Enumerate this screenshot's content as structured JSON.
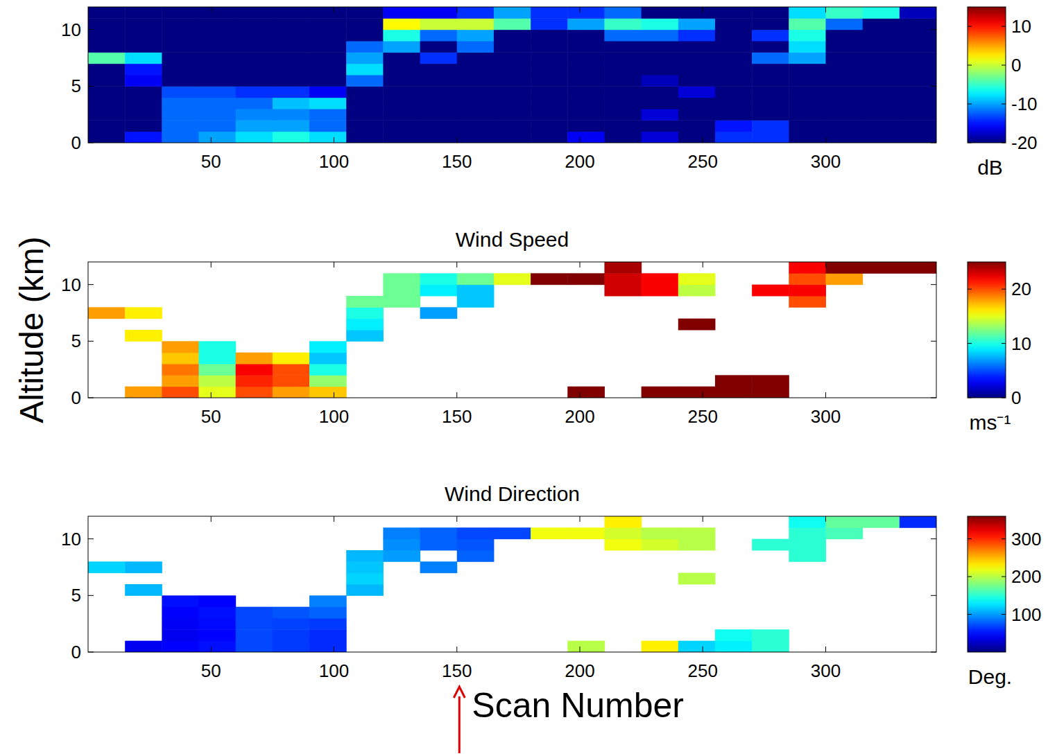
{
  "chart_data": [
    {
      "type": "heatmap",
      "xlim": [
        0,
        345
      ],
      "ylim": [
        0,
        12
      ],
      "xticks": [
        50,
        100,
        150,
        200,
        250,
        300
      ],
      "yticks": [
        0,
        5,
        10
      ],
      "x_bins": [
        0,
        15,
        30,
        45,
        60,
        75,
        90,
        105,
        120,
        135,
        150,
        165,
        180,
        195,
        210,
        225,
        240,
        255,
        270,
        285,
        300,
        315,
        330,
        345
      ],
      "y_bins": [
        0,
        1,
        2,
        3,
        4,
        5,
        6,
        7,
        8,
        9,
        10,
        11,
        12
      ],
      "z": [
        [
          -20,
          -15,
          -12,
          -10,
          -8,
          -6,
          -8,
          -20,
          -20,
          -20,
          -20,
          -20,
          -20,
          -16,
          -20,
          -17,
          -20,
          -14,
          -14,
          -20,
          -20,
          -20,
          -20
        ],
        [
          -20,
          -20,
          -12,
          -12,
          -10,
          -10,
          -12,
          -20,
          -20,
          -20,
          -20,
          -20,
          -20,
          -20,
          -20,
          -20,
          -20,
          -15,
          -14,
          -20,
          -20,
          -20,
          -20
        ],
        [
          -20,
          -20,
          -12,
          -12,
          -11,
          -11,
          -12,
          -20,
          -20,
          -20,
          -20,
          -20,
          -20,
          -20,
          -20,
          -17,
          -20,
          -20,
          -20,
          -20,
          -20,
          -20,
          -20
        ],
        [
          -20,
          -20,
          -12,
          -12,
          -12,
          -9,
          -8,
          -20,
          -20,
          -20,
          -20,
          -20,
          -20,
          -20,
          -20,
          -20,
          -20,
          -20,
          -20,
          -20,
          -20,
          -20,
          -20
        ],
        [
          -20,
          -20,
          -13,
          -13,
          -14,
          -14,
          -16,
          -20,
          -20,
          -20,
          -20,
          -20,
          -20,
          -20,
          -20,
          -20,
          -17,
          -20,
          -20,
          -20,
          -20,
          -20,
          -20
        ],
        [
          -20,
          -16,
          -20,
          -20,
          -20,
          -20,
          -20,
          -12,
          -20,
          -20,
          -20,
          -20,
          -20,
          -20,
          -20,
          -18,
          -20,
          -20,
          -20,
          -20,
          -20,
          -20,
          -20
        ],
        [
          -20,
          -15,
          -20,
          -20,
          -20,
          -20,
          -20,
          -8,
          -20,
          -20,
          -20,
          -20,
          -20,
          -20,
          -20,
          -20,
          -20,
          -20,
          -20,
          -20,
          -20,
          -20,
          -20
        ],
        [
          -4,
          -8,
          -20,
          -20,
          -20,
          -20,
          -20,
          -10,
          -20,
          -14,
          -20,
          -20,
          -20,
          -20,
          -20,
          -20,
          -20,
          -20,
          -12,
          -10,
          -20,
          -20,
          -20
        ],
        [
          -20,
          -20,
          -20,
          -20,
          -20,
          -20,
          -20,
          -12,
          -10,
          -20,
          -12,
          -20,
          -20,
          -20,
          -20,
          -20,
          -20,
          -20,
          -20,
          -8,
          -20,
          -20,
          -20
        ],
        [
          -20,
          -20,
          -20,
          -20,
          -20,
          -20,
          -20,
          -20,
          -6,
          -12,
          -10,
          -20,
          -20,
          -20,
          -12,
          -12,
          -14,
          -20,
          -14,
          -6,
          -20,
          -20,
          -20
        ],
        [
          -20,
          -20,
          -20,
          -20,
          -20,
          -20,
          -20,
          -20,
          2,
          0,
          0,
          -4,
          -14,
          -10,
          -5,
          -6,
          -10,
          -20,
          -20,
          -4,
          -12,
          -20,
          -20
        ],
        [
          -20,
          -20,
          -20,
          -20,
          -20,
          -20,
          -20,
          -20,
          -16,
          -16,
          -14,
          -10,
          -14,
          -14,
          -12,
          -20,
          -20,
          -20,
          -20,
          -8,
          -5,
          -6,
          -18
        ]
      ],
      "colorbar": {
        "range": [
          -20,
          15
        ],
        "ticks": [
          -20,
          -10,
          0,
          10
        ],
        "label": "dB"
      }
    },
    {
      "type": "heatmap",
      "title": "Wind Speed",
      "ylabel": "Altitude (km)",
      "xlim": [
        0,
        345
      ],
      "ylim": [
        0,
        12
      ],
      "xticks": [
        50,
        100,
        150,
        200,
        250,
        300
      ],
      "yticks": [
        0,
        5,
        10
      ],
      "x_bins": [
        0,
        15,
        30,
        45,
        60,
        75,
        90,
        105,
        120,
        135,
        150,
        165,
        180,
        195,
        210,
        225,
        240,
        255,
        270,
        285,
        300,
        315,
        330,
        345
      ],
      "y_bins": [
        0,
        1,
        2,
        3,
        4,
        5,
        6,
        7,
        8,
        9,
        10,
        11,
        12
      ],
      "z": [
        [
          null,
          18,
          20,
          15,
          20,
          18,
          17,
          null,
          null,
          null,
          null,
          null,
          null,
          25,
          null,
          25,
          25,
          25,
          25,
          null,
          null,
          null,
          null
        ],
        [
          null,
          null,
          18,
          14,
          21,
          20,
          13,
          null,
          null,
          null,
          null,
          null,
          null,
          null,
          null,
          null,
          null,
          25,
          25,
          null,
          null,
          null,
          null
        ],
        [
          null,
          null,
          19,
          12,
          22,
          20,
          10,
          null,
          null,
          null,
          null,
          null,
          null,
          null,
          null,
          null,
          null,
          null,
          null,
          null,
          null,
          null,
          null
        ],
        [
          null,
          null,
          17,
          10,
          18,
          16,
          8,
          null,
          null,
          null,
          null,
          null,
          null,
          null,
          null,
          null,
          null,
          null,
          null,
          null,
          null,
          null,
          null
        ],
        [
          null,
          null,
          18,
          10,
          null,
          null,
          9,
          null,
          null,
          null,
          null,
          null,
          null,
          null,
          null,
          null,
          null,
          null,
          null,
          null,
          null,
          null,
          null
        ],
        [
          null,
          16,
          null,
          null,
          null,
          null,
          null,
          8,
          null,
          null,
          null,
          null,
          null,
          null,
          null,
          null,
          null,
          null,
          null,
          null,
          null,
          null,
          null
        ],
        [
          null,
          null,
          null,
          null,
          null,
          null,
          null,
          9,
          null,
          null,
          null,
          null,
          null,
          null,
          null,
          null,
          25,
          null,
          null,
          null,
          null,
          null,
          null
        ],
        [
          18,
          16,
          null,
          null,
          null,
          null,
          null,
          10,
          null,
          7,
          null,
          null,
          null,
          null,
          null,
          null,
          null,
          null,
          null,
          null,
          null,
          null,
          null
        ],
        [
          null,
          null,
          null,
          null,
          null,
          null,
          null,
          12,
          12,
          null,
          8,
          null,
          null,
          null,
          null,
          null,
          null,
          null,
          null,
          20,
          null,
          null,
          null
        ],
        [
          null,
          null,
          null,
          null,
          null,
          null,
          null,
          null,
          12,
          9,
          8,
          null,
          null,
          null,
          23,
          22,
          14,
          null,
          22,
          22,
          null,
          null,
          null
        ],
        [
          null,
          null,
          null,
          null,
          null,
          null,
          null,
          null,
          12,
          10,
          12,
          15,
          25,
          25,
          23,
          22,
          15,
          null,
          null,
          20,
          18,
          null,
          null
        ],
        [
          null,
          null,
          null,
          null,
          null,
          null,
          null,
          null,
          null,
          null,
          null,
          null,
          null,
          null,
          24,
          null,
          null,
          null,
          null,
          22,
          25,
          25,
          25
        ]
      ],
      "colorbar": {
        "range": [
          0,
          25
        ],
        "ticks": [
          0,
          10,
          20
        ],
        "label": "ms⁻¹"
      }
    },
    {
      "type": "heatmap",
      "title": "Wind Direction",
      "xlabel": "Scan Number",
      "arrow_x": 151,
      "xlim": [
        0,
        345
      ],
      "ylim": [
        0,
        12
      ],
      "xticks": [
        50,
        100,
        150,
        200,
        250,
        300
      ],
      "yticks": [
        0,
        5,
        10
      ],
      "x_bins": [
        0,
        15,
        30,
        45,
        60,
        75,
        90,
        105,
        120,
        135,
        150,
        165,
        180,
        195,
        210,
        225,
        240,
        255,
        270,
        285,
        300,
        315,
        330,
        345
      ],
      "y_bins": [
        0,
        1,
        2,
        3,
        4,
        5,
        6,
        7,
        8,
        9,
        10,
        11,
        12
      ],
      "z": [
        [
          null,
          40,
          45,
          50,
          70,
          65,
          60,
          null,
          null,
          null,
          null,
          null,
          null,
          200,
          null,
          230,
          120,
          130,
          150,
          null,
          null,
          null,
          null
        ],
        [
          null,
          null,
          40,
          45,
          70,
          65,
          60,
          null,
          null,
          null,
          null,
          null,
          null,
          null,
          null,
          null,
          null,
          140,
          150,
          null,
          null,
          null,
          null
        ],
        [
          null,
          null,
          42,
          48,
          70,
          68,
          65,
          null,
          null,
          null,
          null,
          null,
          null,
          null,
          null,
          null,
          null,
          null,
          null,
          null,
          null,
          null,
          null
        ],
        [
          null,
          null,
          45,
          50,
          70,
          75,
          80,
          null,
          null,
          null,
          null,
          null,
          null,
          null,
          null,
          null,
          null,
          null,
          null,
          null,
          null,
          null,
          null
        ],
        [
          null,
          null,
          50,
          45,
          null,
          null,
          90,
          null,
          null,
          null,
          null,
          null,
          null,
          null,
          null,
          null,
          null,
          null,
          null,
          null,
          null,
          null,
          null
        ],
        [
          null,
          110,
          null,
          null,
          null,
          null,
          null,
          110,
          null,
          null,
          null,
          null,
          null,
          null,
          null,
          null,
          null,
          null,
          null,
          null,
          null,
          null,
          null
        ],
        [
          null,
          null,
          null,
          null,
          null,
          null,
          null,
          120,
          null,
          null,
          null,
          null,
          null,
          null,
          null,
          null,
          200,
          null,
          null,
          null,
          null,
          null,
          null
        ],
        [
          120,
          110,
          null,
          null,
          null,
          null,
          null,
          115,
          null,
          90,
          null,
          null,
          null,
          null,
          null,
          null,
          null,
          null,
          null,
          null,
          null,
          null,
          null
        ],
        [
          null,
          null,
          null,
          null,
          null,
          null,
          null,
          110,
          100,
          null,
          80,
          null,
          null,
          null,
          null,
          null,
          null,
          null,
          null,
          150,
          null,
          null,
          null
        ],
        [
          null,
          null,
          null,
          null,
          null,
          null,
          null,
          null,
          95,
          80,
          75,
          null,
          null,
          null,
          220,
          210,
          200,
          null,
          150,
          150,
          null,
          null,
          null
        ],
        [
          null,
          null,
          null,
          null,
          null,
          null,
          null,
          null,
          90,
          80,
          70,
          70,
          220,
          220,
          210,
          200,
          200,
          null,
          null,
          150,
          160,
          null,
          null
        ],
        [
          null,
          null,
          null,
          null,
          null,
          null,
          null,
          null,
          null,
          null,
          null,
          null,
          null,
          null,
          230,
          null,
          null,
          null,
          null,
          140,
          170,
          170,
          60
        ]
      ],
      "colorbar": {
        "range": [
          0,
          360
        ],
        "ticks": [
          100,
          200,
          300
        ],
        "label": "Deg."
      }
    }
  ]
}
